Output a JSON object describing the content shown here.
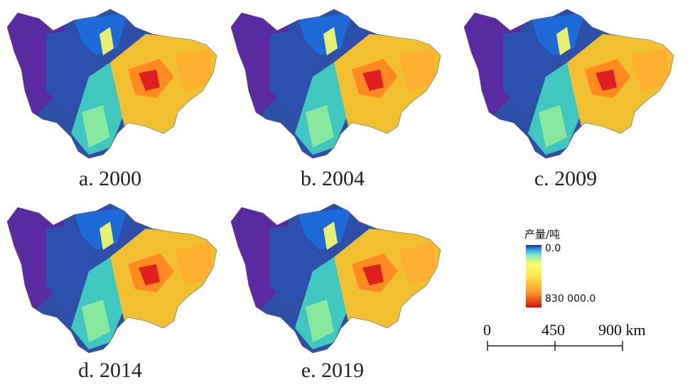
{
  "panels": [
    {
      "caption": "a. 2000"
    },
    {
      "caption": "b. 2004"
    },
    {
      "caption": "c. 2009"
    },
    {
      "caption": "d. 2014"
    },
    {
      "caption": "e. 2019"
    }
  ],
  "legend": {
    "title": "产量/吨",
    "min_label": "0.0",
    "max_label": "830 000.0",
    "colors": [
      "#1a2aa0",
      "#35a7e0",
      "#7de8c9",
      "#f4ff70",
      "#ffe84a",
      "#ff9a2a",
      "#d81010"
    ]
  },
  "scale_bar": {
    "labels": [
      "0",
      "450",
      "900 km"
    ]
  },
  "region_colors": {
    "west": "#5a2aa0",
    "northwest": "#2e4fa8",
    "central": "#1e6ad8",
    "transition": "#40c8c0",
    "east": "#f0c030",
    "core": "#e02020"
  }
}
